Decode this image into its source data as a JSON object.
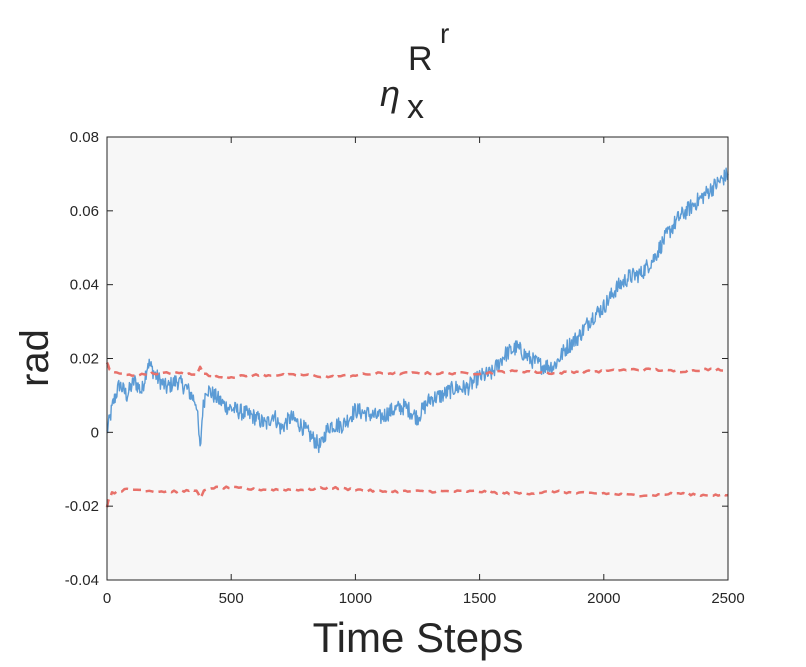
{
  "chart_data": {
    "type": "line",
    "title": {
      "symbol": "η",
      "subscript": "x",
      "superscript": "R",
      "superscript_exponent": "r"
    },
    "xlabel": "Time Steps",
    "ylabel": "rad",
    "xlim": [
      0,
      2500
    ],
    "ylim": [
      -0.04,
      0.08
    ],
    "xticks": [
      0,
      500,
      1000,
      1500,
      2000,
      2500
    ],
    "xtick_labels": [
      "0",
      "500",
      "1000",
      "1500",
      "2000",
      "2500"
    ],
    "yticks": [
      -0.04,
      -0.02,
      0,
      0.02,
      0.04,
      0.06,
      0.08
    ],
    "ytick_labels": [
      "-0.04",
      "-0.02",
      "0",
      "0.02",
      "0.04",
      "0.06",
      "0.08"
    ],
    "grid": false,
    "background": "#f7f7f7",
    "series": [
      {
        "style": "solid",
        "color": "#5b9bd5",
        "x": [
          0,
          25,
          50,
          80,
          110,
          140,
          165,
          200,
          240,
          280,
          320,
          360,
          375,
          385,
          400,
          430,
          480,
          520,
          560,
          600,
          640,
          670,
          700,
          740,
          780,
          820,
          860,
          880,
          900,
          950,
          1000,
          1050,
          1100,
          1150,
          1200,
          1250,
          1300,
          1350,
          1400,
          1450,
          1500,
          1550,
          1600,
          1650,
          1700,
          1750,
          1800,
          1850,
          1900,
          1950,
          2000,
          2050,
          2100,
          2150,
          2200,
          2250,
          2300,
          2350,
          2400,
          2450,
          2500
        ],
        "y": [
          0.0,
          0.008,
          0.013,
          0.01,
          0.014,
          0.011,
          0.019,
          0.015,
          0.012,
          0.014,
          0.012,
          0.008,
          -0.005,
          0.006,
          0.012,
          0.01,
          0.007,
          0.006,
          0.005,
          0.004,
          0.002,
          0.005,
          0.001,
          0.004,
          0.002,
          -0.001,
          -0.004,
          0.0,
          0.002,
          0.002,
          0.006,
          0.005,
          0.004,
          0.006,
          0.007,
          0.004,
          0.009,
          0.01,
          0.012,
          0.012,
          0.015,
          0.016,
          0.021,
          0.023,
          0.02,
          0.018,
          0.018,
          0.023,
          0.026,
          0.031,
          0.034,
          0.039,
          0.042,
          0.043,
          0.047,
          0.053,
          0.058,
          0.061,
          0.064,
          0.067,
          0.07
        ]
      },
      {
        "style": "dashed",
        "color": "#e8716a",
        "x": [
          0,
          10,
          20,
          40,
          80,
          120,
          200,
          300,
          360,
          375,
          390,
          420,
          500,
          600,
          700,
          800,
          900,
          1000,
          1100,
          1200,
          1300,
          1400,
          1500,
          1600,
          1700,
          1800,
          1900,
          2000,
          2100,
          2200,
          2300,
          2400,
          2500
        ],
        "y": [
          0.019,
          0.017,
          0.0165,
          0.016,
          0.0155,
          0.0155,
          0.016,
          0.016,
          0.0155,
          0.018,
          0.016,
          0.015,
          0.015,
          0.0155,
          0.0155,
          0.0155,
          0.015,
          0.0155,
          0.016,
          0.016,
          0.016,
          0.016,
          0.016,
          0.0165,
          0.0165,
          0.016,
          0.0165,
          0.0165,
          0.017,
          0.017,
          0.0165,
          0.017,
          0.017
        ]
      },
      {
        "style": "dashed",
        "color": "#e8716a",
        "x": [
          0,
          10,
          20,
          40,
          80,
          120,
          200,
          300,
          360,
          375,
          390,
          420,
          500,
          600,
          700,
          800,
          900,
          1000,
          1100,
          1200,
          1300,
          1400,
          1500,
          1600,
          1700,
          1800,
          1900,
          2000,
          2100,
          2200,
          2300,
          2400,
          2500
        ],
        "y": [
          -0.02,
          -0.0175,
          -0.0165,
          -0.016,
          -0.0155,
          -0.0155,
          -0.016,
          -0.016,
          -0.0155,
          -0.018,
          -0.016,
          -0.015,
          -0.015,
          -0.0155,
          -0.0155,
          -0.0155,
          -0.015,
          -0.0155,
          -0.016,
          -0.016,
          -0.016,
          -0.016,
          -0.016,
          -0.0165,
          -0.0165,
          -0.016,
          -0.0165,
          -0.0165,
          -0.017,
          -0.017,
          -0.0165,
          -0.017,
          -0.017
        ]
      }
    ]
  }
}
